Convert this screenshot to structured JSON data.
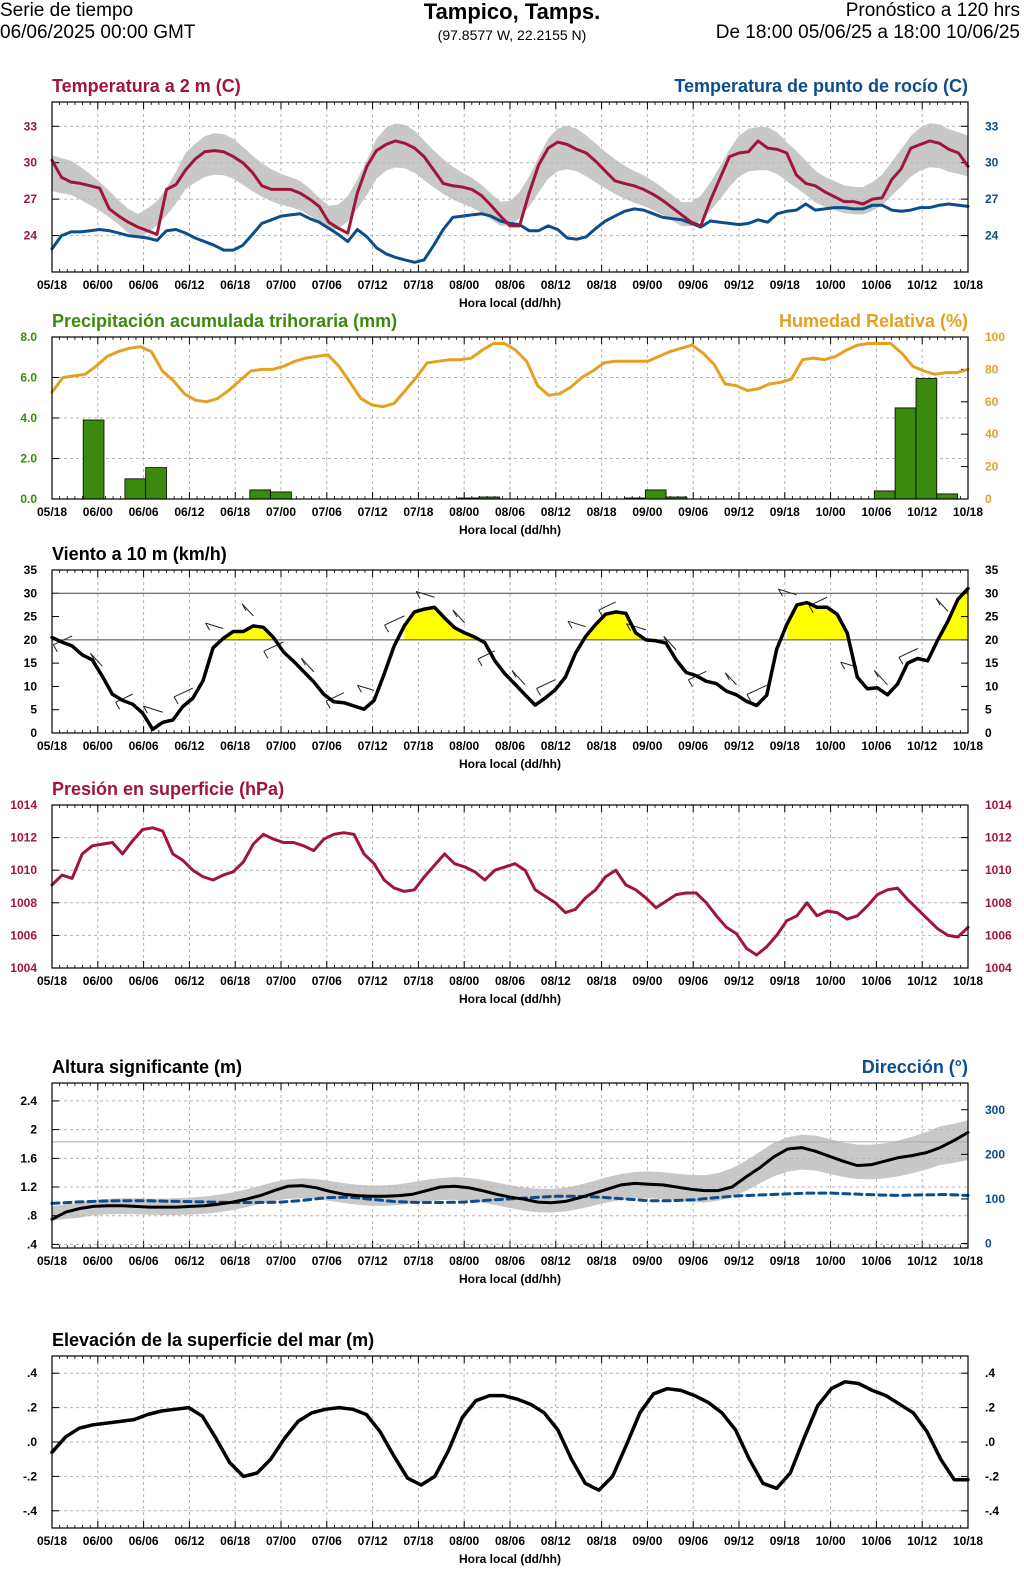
{
  "header": {
    "left_line1": "Serie de tiempo",
    "left_line2": "06/06/2025 00:00 GMT",
    "title": "Tampico, Tamps.",
    "coords": "(97.8577 W, 22.2155 N)",
    "right_line1": "Pronóstico a 120 hrs",
    "right_line2": "De 18:00 05/06/25 a 18:00 10/06/25"
  },
  "x_axis": {
    "tick_labels": [
      "05/18",
      "06/00",
      "06/06",
      "06/12",
      "06/18",
      "07/00",
      "07/06",
      "07/12",
      "07/18",
      "08/00",
      "08/06",
      "08/12",
      "08/18",
      "09/00",
      "09/06",
      "09/12",
      "09/18",
      "10/00",
      "10/06",
      "10/12",
      "10/18"
    ],
    "label": "Hora local (dd/hh)"
  },
  "chart_data": [
    {
      "id": "temp",
      "type": "line",
      "title_left": "Temperatura a 2 m (C)",
      "title_right": "Temperatura de punto de rocío (C)",
      "colors": {
        "left": "#a0163a",
        "right": "#0d4d8c",
        "band": "#c8c8c8"
      },
      "ylim": [
        21,
        35
      ],
      "yticks": [
        24,
        27,
        30,
        33
      ],
      "series": [
        {
          "name": "Temperatura a 2 m",
          "axis": "left",
          "values": [
            30.2,
            28.8,
            28.4,
            28.3,
            28.1,
            27.9,
            26.2,
            25.6,
            25.1,
            24.7,
            24.4,
            24.1,
            27.8,
            28.2,
            29.4,
            30.3,
            30.9,
            31.0,
            30.9,
            30.5,
            30.0,
            29.2,
            28.1,
            27.8,
            27.8,
            27.8,
            27.5,
            27.0,
            26.4,
            25.1,
            24.6,
            24.2,
            27.5,
            29.7,
            31.0,
            31.5,
            31.8,
            31.6,
            31.2,
            30.5,
            29.4,
            28.3,
            28.1,
            28.0,
            27.8,
            27.3,
            26.5,
            25.6,
            24.8,
            24.8,
            27.5,
            29.8,
            31.2,
            31.7,
            31.5,
            31.1,
            30.8,
            30.1,
            29.3,
            28.5,
            28.3,
            28.1,
            27.8,
            27.4,
            26.9,
            26.3,
            25.7,
            25.1,
            24.8,
            26.9,
            28.7,
            30.5,
            30.8,
            30.9,
            31.8,
            31.2,
            31.1,
            30.8,
            29.0,
            28.3,
            28.1,
            27.6,
            27.2,
            26.8,
            26.8,
            26.6,
            27.0,
            27.1,
            28.6,
            29.5,
            31.2,
            31.5,
            31.8,
            31.6,
            31.1,
            30.8,
            29.7
          ]
        },
        {
          "name": "Temperatura de punto de rocío",
          "axis": "right",
          "values": [
            22.9,
            24.0,
            24.3,
            24.3,
            24.4,
            24.5,
            24.4,
            24.2,
            24.0,
            23.9,
            23.8,
            23.6,
            24.4,
            24.5,
            24.2,
            23.8,
            23.5,
            23.2,
            22.8,
            22.8,
            23.2,
            24.1,
            25.0,
            25.3,
            25.6,
            25.7,
            25.8,
            25.4,
            25.1,
            24.6,
            24.1,
            23.5,
            24.5,
            23.9,
            23.0,
            22.5,
            22.2,
            22.0,
            21.8,
            22.0,
            23.2,
            24.5,
            25.5,
            25.6,
            25.7,
            25.8,
            25.6,
            25.2,
            25.0,
            24.9,
            24.4,
            24.4,
            24.8,
            24.5,
            23.8,
            23.7,
            23.9,
            24.6,
            25.2,
            25.6,
            26.0,
            26.2,
            26.1,
            25.8,
            25.5,
            25.4,
            25.3,
            25.0,
            24.7,
            25.2,
            25.1,
            25.0,
            24.9,
            25.0,
            25.3,
            25.1,
            25.8,
            26.0,
            26.1,
            26.6,
            26.1,
            26.2,
            26.3,
            26.3,
            26.2,
            26.2,
            26.5,
            26.5,
            26.1,
            26.0,
            26.1,
            26.3,
            26.3,
            26.5,
            26.6,
            26.5,
            26.4
          ]
        }
      ]
    },
    {
      "id": "precip",
      "type": "bar+line",
      "title_left": "Precipitación acumulada trihoraria (mm)",
      "title_right": "Humedad Relativa (%)",
      "colors": {
        "left": "#3c8a0d",
        "right": "#e6a020"
      },
      "ylim_left": [
        0,
        8
      ],
      "yticks_left_labels": [
        "0.0",
        "2.0",
        "4.0",
        "6.0",
        "8.0"
      ],
      "yticks_left_values": [
        0,
        2,
        4,
        6,
        8
      ],
      "ylim_right": [
        0,
        100
      ],
      "yticks_right": [
        0,
        20,
        40,
        60,
        80,
        100
      ],
      "bars": [
        0,
        0,
        3.9,
        0,
        1.0,
        1.55,
        0,
        0,
        0,
        0,
        0.45,
        0.35,
        0,
        0,
        0,
        0,
        0,
        0,
        0,
        0,
        0.05,
        0.1,
        0,
        0,
        0,
        0,
        0,
        0,
        0.05,
        0.45,
        0.1,
        0,
        0,
        0,
        0,
        0,
        0,
        0,
        0,
        0,
        0.4,
        4.5,
        5.95,
        0.25,
        0
      ],
      "series": [
        {
          "name": "Humedad Relativa",
          "axis": "right",
          "values": [
            66,
            75,
            76,
            77,
            82,
            88,
            91,
            93,
            94,
            91,
            79,
            73,
            65,
            61,
            60,
            62,
            67,
            73,
            79,
            80,
            80,
            82,
            85,
            87,
            88,
            89,
            82,
            72,
            62,
            58,
            57,
            59,
            67,
            75,
            84,
            85,
            86,
            86,
            87,
            92,
            96,
            96,
            92,
            85,
            70,
            64,
            65,
            69,
            75,
            79,
            84,
            85,
            85,
            85,
            85,
            88,
            91,
            93,
            95,
            90,
            83,
            71,
            70,
            67,
            68,
            71,
            72,
            74,
            86,
            87,
            86,
            88,
            92,
            95,
            96,
            96,
            96,
            90,
            82,
            79,
            77,
            78,
            78,
            80
          ]
        }
      ]
    },
    {
      "id": "wind",
      "type": "line",
      "title_left": "Viento a 10 m (km/h)",
      "colors": {
        "line": "#000000",
        "fill": "#ffff00"
      },
      "ylim": [
        0,
        35
      ],
      "yticks": [
        0,
        5,
        10,
        15,
        20,
        25,
        30,
        35
      ],
      "reference_lines": [
        20,
        30
      ],
      "series": [
        {
          "name": "Viento a 10 m",
          "values": [
            20.5,
            19.5,
            18.7,
            16.8,
            15.7,
            12.2,
            8.3,
            7.0,
            6.2,
            4.3,
            0.8,
            2.3,
            2.8,
            5.7,
            7.5,
            11.2,
            18.3,
            20.3,
            21.8,
            21.8,
            23.0,
            22.7,
            20.5,
            17.4,
            15.4,
            13.2,
            11.0,
            8.3,
            6.7,
            6.5,
            5.8,
            5.1,
            7.0,
            12.7,
            18.7,
            23.0,
            26.0,
            26.6,
            27.0,
            24.7,
            22.6,
            21.5,
            20.6,
            19.4,
            15.5,
            12.7,
            10.5,
            8.2,
            6.0,
            7.5,
            9.3,
            12.0,
            17.1,
            20.7,
            23.3,
            25.5,
            26.0,
            25.7,
            21.5,
            20.0,
            19.8,
            19.3,
            15.7,
            13.0,
            12.3,
            11.1,
            10.6,
            9.0,
            8.2,
            6.8,
            5.9,
            8.1,
            18.0,
            23.3,
            27.5,
            28.0,
            27.0,
            27.0,
            25.5,
            21.5,
            12.0,
            9.5,
            9.7,
            8.2,
            10.5,
            15.0,
            16.0,
            15.5,
            20.0,
            24.0,
            28.7,
            31.0
          ]
        }
      ]
    },
    {
      "id": "pressure",
      "type": "line",
      "title_left": "Presión en superficie (hPa)",
      "colors": {
        "line": "#a0163a"
      },
      "ylim": [
        1004,
        1014
      ],
      "yticks": [
        1004,
        1006,
        1008,
        1010,
        1012,
        1014
      ],
      "series": [
        {
          "name": "Presión en superficie",
          "values": [
            1009.1,
            1009.7,
            1009.5,
            1011.0,
            1011.5,
            1011.6,
            1011.7,
            1011.0,
            1011.8,
            1012.5,
            1012.6,
            1012.4,
            1011.0,
            1010.6,
            1010.0,
            1009.6,
            1009.4,
            1009.7,
            1009.9,
            1010.5,
            1011.6,
            1012.2,
            1011.9,
            1011.7,
            1011.7,
            1011.5,
            1011.2,
            1011.9,
            1012.2,
            1012.3,
            1012.2,
            1011.0,
            1010.4,
            1009.4,
            1008.9,
            1008.7,
            1008.8,
            1009.6,
            1010.3,
            1011.0,
            1010.4,
            1010.2,
            1009.9,
            1009.4,
            1010.0,
            1010.2,
            1010.4,
            1010.0,
            1008.8,
            1008.4,
            1008.0,
            1007.4,
            1007.6,
            1008.3,
            1008.8,
            1009.6,
            1010.0,
            1009.1,
            1008.8,
            1008.3,
            1007.7,
            1008.1,
            1008.5,
            1008.6,
            1008.6,
            1008.0,
            1007.2,
            1006.5,
            1006.1,
            1005.2,
            1004.8,
            1005.3,
            1006.0,
            1006.9,
            1007.2,
            1008.0,
            1007.2,
            1007.5,
            1007.4,
            1007.0,
            1007.2,
            1007.8,
            1008.5,
            1008.8,
            1008.9,
            1008.2,
            1007.6,
            1007.0,
            1006.4,
            1006.0,
            1005.9,
            1006.5
          ]
        }
      ]
    },
    {
      "id": "waves",
      "type": "line",
      "title_left": "Altura significante (m)",
      "title_right": "Dirección (°)",
      "colors": {
        "left": "#000000",
        "right": "#0d4d8c",
        "band": "#c8c8c8"
      },
      "ylim_left": [
        0.35,
        2.65
      ],
      "yticks_left_labels": [
        ".4",
        ".8",
        "1.2",
        "1.6",
        "2",
        "2.4"
      ],
      "yticks_left_values": [
        0.4,
        0.8,
        1.2,
        1.6,
        2.0,
        2.4
      ],
      "ylim_right": [
        -10,
        360
      ],
      "yticks_right": [
        0,
        100,
        200,
        300
      ],
      "reference_line_left": 1.83,
      "series": [
        {
          "name": "Altura significante",
          "axis": "left",
          "values": [
            0.75,
            0.85,
            0.9,
            0.93,
            0.94,
            0.94,
            0.93,
            0.92,
            0.92,
            0.92,
            0.93,
            0.94,
            0.96,
            0.99,
            1.03,
            1.08,
            1.15,
            1.21,
            1.22,
            1.19,
            1.14,
            1.1,
            1.08,
            1.07,
            1.07,
            1.08,
            1.1,
            1.15,
            1.2,
            1.21,
            1.19,
            1.15,
            1.1,
            1.06,
            1.03,
            0.99,
            0.98,
            1.0,
            1.05,
            1.11,
            1.17,
            1.23,
            1.25,
            1.24,
            1.23,
            1.2,
            1.17,
            1.15,
            1.15,
            1.2,
            1.34,
            1.47,
            1.62,
            1.73,
            1.75,
            1.7,
            1.63,
            1.56,
            1.5,
            1.51,
            1.56,
            1.61,
            1.64,
            1.68,
            1.75,
            1.85,
            1.96
          ]
        },
        {
          "name": "Dirección",
          "axis": "right",
          "values": [
            90,
            93,
            95,
            96,
            96,
            95,
            94,
            93,
            92,
            92,
            93,
            97,
            103,
            104,
            99,
            94,
            92,
            92,
            93,
            97,
            100,
            103,
            106,
            106,
            104,
            100,
            96,
            96,
            98,
            103,
            107,
            109,
            111,
            113,
            113,
            111,
            109,
            108,
            109,
            110,
            108
          ]
        }
      ]
    },
    {
      "id": "ssh",
      "type": "line",
      "title_left": "Elevación de la superficie del mar (m)",
      "colors": {
        "line": "#000000"
      },
      "ylim": [
        -0.5,
        0.5
      ],
      "yticks_labels": [
        "-.4",
        "-.2",
        ".0",
        ".2",
        ".4"
      ],
      "yticks_values": [
        -0.4,
        -0.2,
        0.0,
        0.2,
        0.4
      ],
      "series": [
        {
          "name": "Elevación de la superficie del mar",
          "values": [
            -0.06,
            0.03,
            0.08,
            0.1,
            0.11,
            0.12,
            0.13,
            0.16,
            0.18,
            0.19,
            0.2,
            0.15,
            0.02,
            -0.12,
            -0.2,
            -0.18,
            -0.1,
            0.02,
            0.12,
            0.17,
            0.19,
            0.2,
            0.19,
            0.16,
            0.06,
            -0.08,
            -0.21,
            -0.25,
            -0.2,
            -0.05,
            0.14,
            0.24,
            0.27,
            0.27,
            0.25,
            0.22,
            0.17,
            0.07,
            -0.1,
            -0.24,
            -0.28,
            -0.2,
            -0.02,
            0.17,
            0.28,
            0.31,
            0.3,
            0.27,
            0.23,
            0.17,
            0.07,
            -0.1,
            -0.24,
            -0.27,
            -0.18,
            0.02,
            0.21,
            0.31,
            0.35,
            0.34,
            0.3,
            0.27,
            0.22,
            0.17,
            0.06,
            -0.1,
            -0.22,
            -0.22
          ]
        }
      ]
    }
  ]
}
